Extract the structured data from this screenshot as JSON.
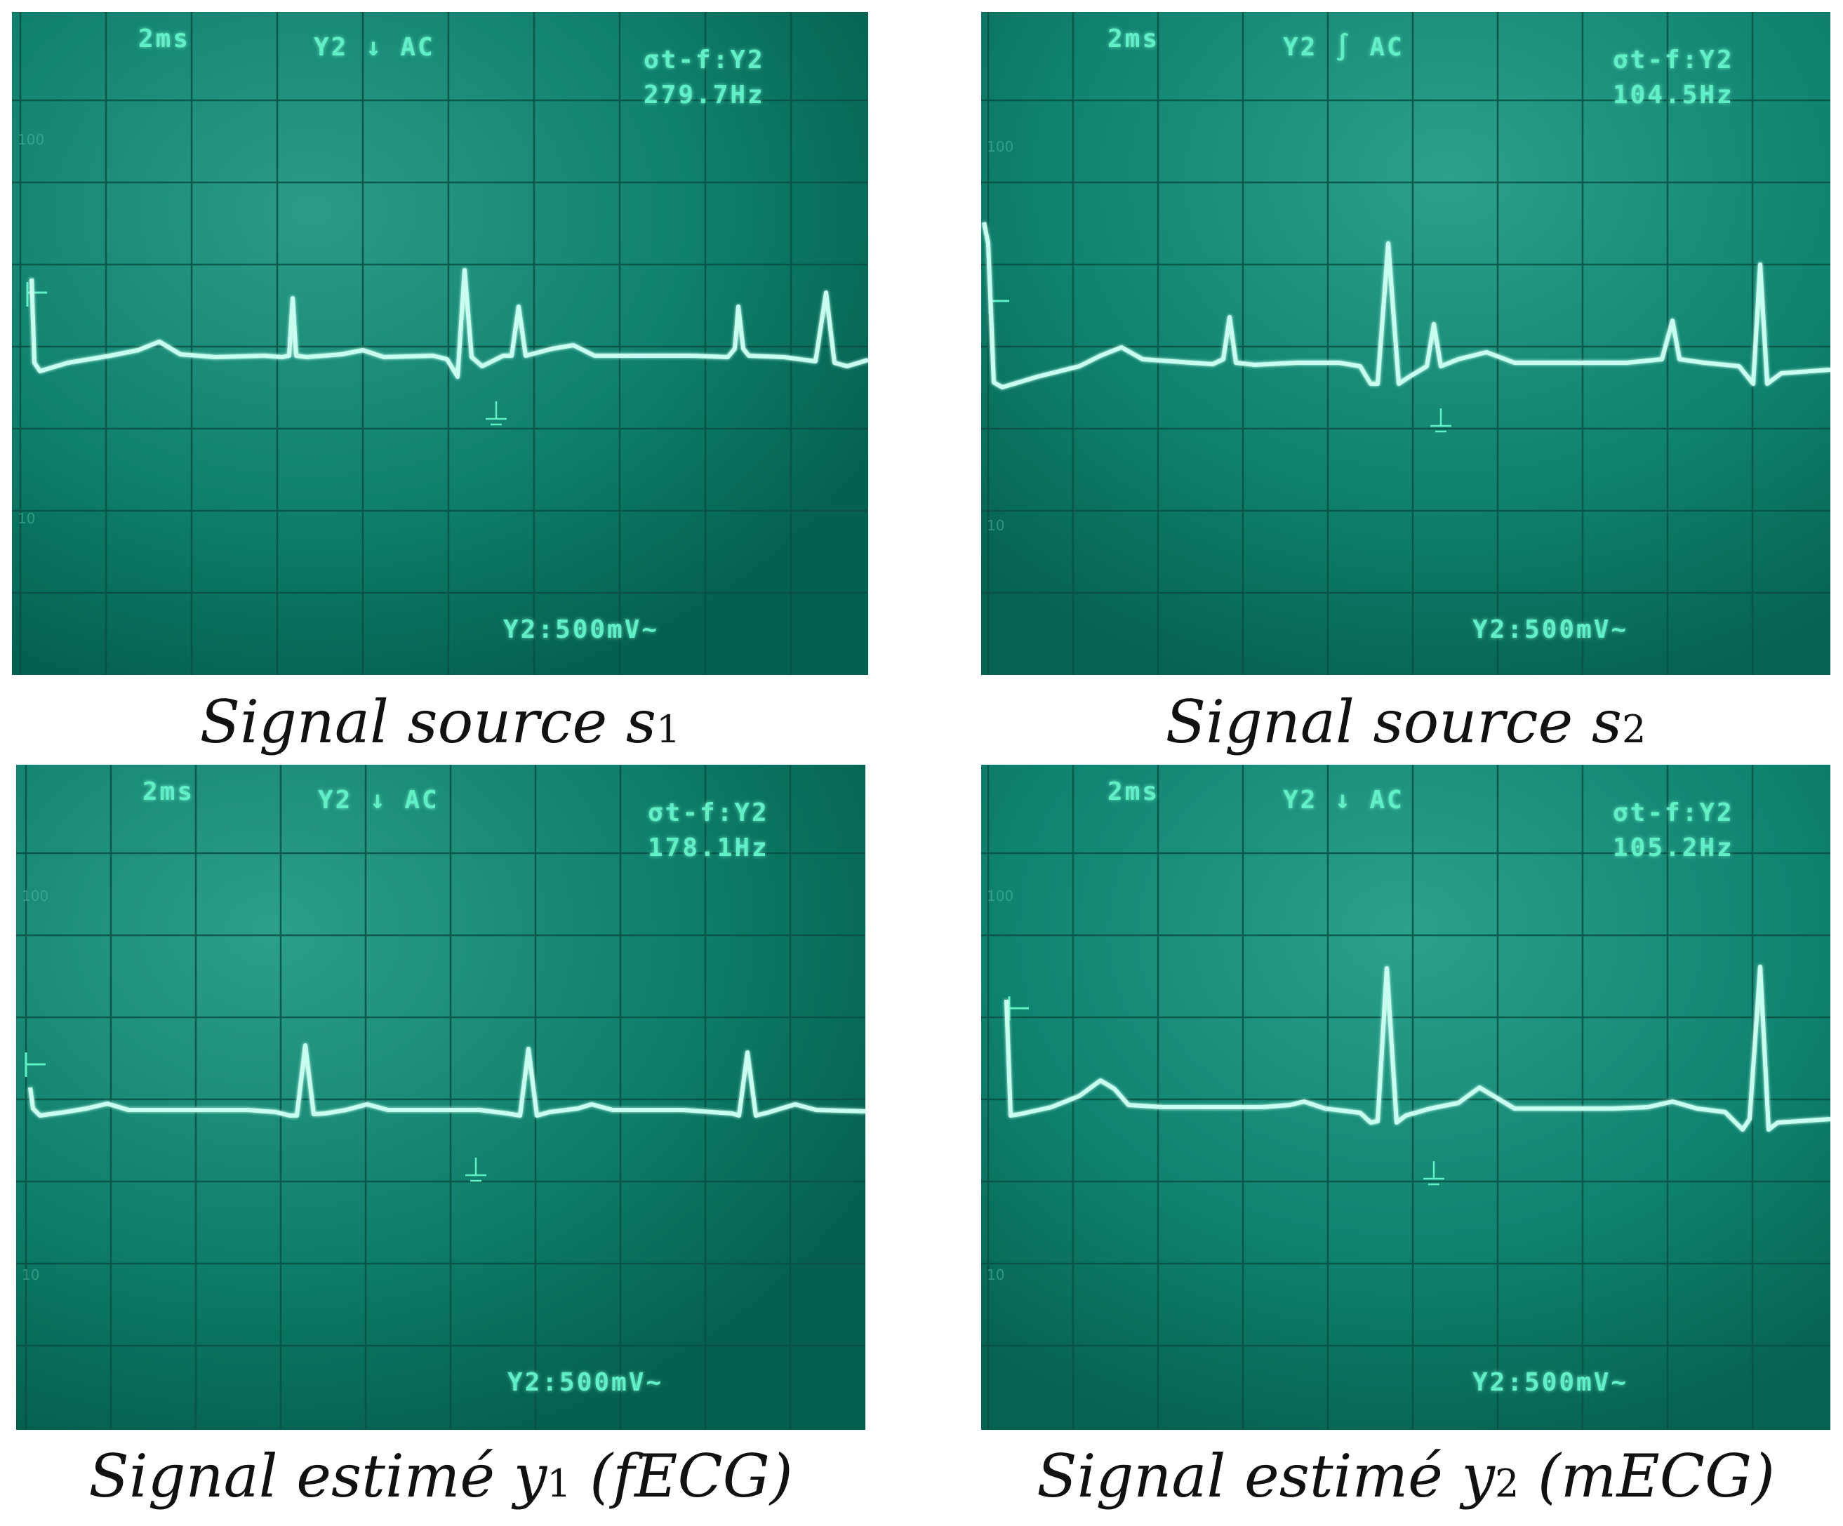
{
  "colors": {
    "screen": "#0c7e6d",
    "screen_dark": "#066a5a",
    "grid": "#0a4f43",
    "trace": "#c8fff0",
    "osd_text": "#61f0c6"
  },
  "panels": [
    {
      "timebase": "2ms",
      "channel": "Y2 ↓ AC",
      "measure": "σt-f:Y2",
      "frequency": "279.7Hz",
      "volts": "Y2:500mV~",
      "caption_main": "Signal source s",
      "caption_sub": "1"
    },
    {
      "timebase": "2ms",
      "channel": "Y2 ∫ AC",
      "measure": "σt-f:Y2",
      "frequency": "104.5Hz",
      "volts": "Y2:500mV~",
      "caption_main": "Signal source s",
      "caption_sub": "2"
    },
    {
      "timebase": "2ms",
      "channel": "Y2 ↓ AC",
      "measure": "σt-f:Y2",
      "frequency": "178.1Hz",
      "volts": "Y2:500mV~",
      "caption_main": "Signal estimé y",
      "caption_sub": "1",
      "caption_tail": " (fECG)"
    },
    {
      "timebase": "2ms",
      "channel": "Y2 ↓ AC",
      "measure": "σt-f:Y2",
      "frequency": "105.2Hz",
      "volts": "Y2:500mV~",
      "caption_main": "Signal estimé y",
      "caption_sub": "2",
      "caption_tail": " (mECG)"
    }
  ]
}
